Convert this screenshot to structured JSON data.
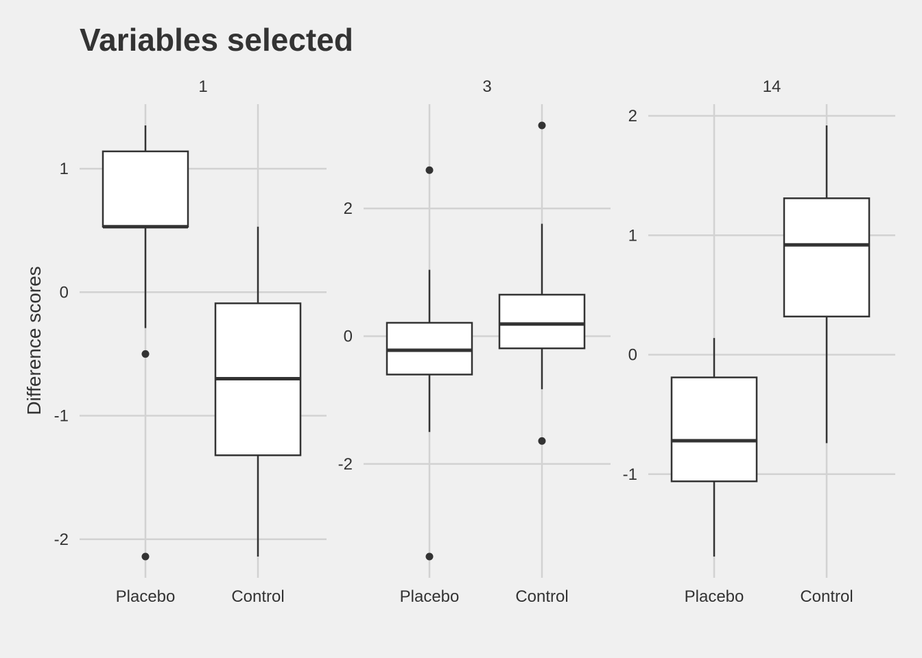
{
  "chart_data": {
    "type": "boxplot",
    "title": "Variables selected",
    "ylabel": "Difference scores",
    "xlabel": "",
    "categories": [
      "Placebo",
      "Control"
    ],
    "colors": {
      "background": "#f0f0f0",
      "grid": "#d2d2d2",
      "ink": "#333333",
      "box_fill": "#ffffff"
    },
    "panels": [
      {
        "strip": "1",
        "ylim": [
          -2.14,
          1.35
        ],
        "yticks": [
          1,
          0,
          -1,
          -2
        ],
        "ytick_labels": [
          "1",
          "0",
          "-1",
          "-2"
        ],
        "boxes": [
          {
            "category": "Placebo",
            "whisker_low": -0.29,
            "q1": 0.53,
            "median": 0.53,
            "q3": 1.14,
            "whisker_high": 1.35,
            "outliers": [
              -0.5,
              -2.14
            ]
          },
          {
            "category": "Control",
            "whisker_low": -2.14,
            "q1": -1.32,
            "median": -0.7,
            "q3": -0.09,
            "whisker_high": 0.53,
            "outliers": []
          }
        ]
      },
      {
        "strip": "3",
        "ylim": [
          -3.45,
          3.3
        ],
        "yticks": [
          2,
          0,
          -2
        ],
        "ytick_labels": [
          "2",
          "0",
          "-2"
        ],
        "boxes": [
          {
            "category": "Placebo",
            "whisker_low": -1.5,
            "q1": -0.6,
            "median": -0.22,
            "q3": 0.21,
            "whisker_high": 1.04,
            "outliers": [
              2.6,
              -3.45
            ]
          },
          {
            "category": "Control",
            "whisker_low": -0.83,
            "q1": -0.19,
            "median": 0.19,
            "q3": 0.65,
            "whisker_high": 1.76,
            "outliers": [
              3.3,
              -1.64
            ]
          }
        ]
      },
      {
        "strip": "14",
        "ylim": [
          -1.69,
          1.92
        ],
        "yticks": [
          2,
          1,
          0,
          -1
        ],
        "ytick_labels": [
          "2",
          "1",
          "0",
          "-1"
        ],
        "boxes": [
          {
            "category": "Placebo",
            "whisker_low": -1.69,
            "q1": -1.06,
            "median": -0.72,
            "q3": -0.19,
            "whisker_high": 0.14,
            "outliers": []
          },
          {
            "category": "Control",
            "whisker_low": -0.74,
            "q1": 0.32,
            "median": 0.92,
            "q3": 1.31,
            "whisker_high": 1.92,
            "outliers": []
          }
        ]
      }
    ]
  }
}
